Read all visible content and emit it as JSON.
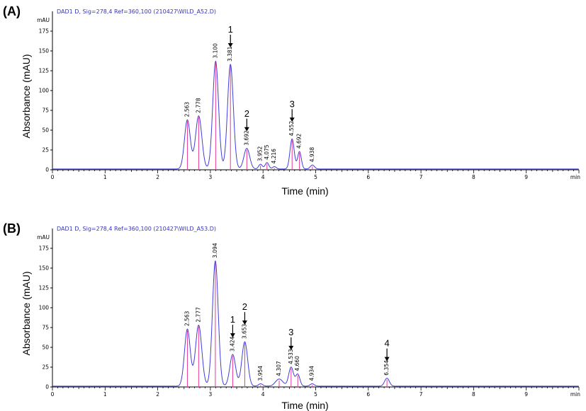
{
  "chart_data": [
    {
      "type": "line",
      "panel_label": "(A)",
      "signal": "DAD1 D, Sig=278,4 Ref=360,100 (210427\\WILD_A52.D)",
      "unit_label": "mAU",
      "time_unit": "min",
      "xlabel": "Time (min)",
      "ylabel": "Absorbance (mAU)",
      "xlim": [
        0,
        10
      ],
      "ylim": [
        0,
        200
      ],
      "x_ticks": [
        0,
        1,
        2,
        3,
        4,
        5,
        6,
        7,
        8,
        9
      ],
      "y_ticks": [
        0,
        25,
        50,
        75,
        100,
        125,
        150,
        175
      ],
      "peaks": [
        {
          "rt": "2.563",
          "x": 2.563,
          "height": 62,
          "width": 0.055
        },
        {
          "rt": "2.778",
          "x": 2.778,
          "height": 67,
          "width": 0.06
        },
        {
          "rt": "3.100",
          "x": 3.1,
          "height": 136,
          "width": 0.055
        },
        {
          "rt": "3.381",
          "x": 3.381,
          "height": 132,
          "width": 0.055
        },
        {
          "rt": "3.692",
          "x": 3.692,
          "height": 26,
          "width": 0.055
        },
        {
          "rt": "3.952",
          "x": 3.952,
          "height": 6,
          "width": 0.035
        },
        {
          "rt": "4.075",
          "x": 4.075,
          "height": 8,
          "width": 0.035
        },
        {
          "rt": "4.216",
          "x": 4.216,
          "height": 3,
          "width": 0.035
        },
        {
          "rt": "4.552",
          "x": 4.552,
          "height": 38,
          "width": 0.04
        },
        {
          "rt": "4.692",
          "x": 4.692,
          "height": 22,
          "width": 0.035
        },
        {
          "rt": "4.938",
          "x": 4.938,
          "height": 5,
          "width": 0.04
        }
      ],
      "arrows": [
        {
          "label": "1",
          "x": 3.381
        },
        {
          "label": "2",
          "x": 3.692
        },
        {
          "label": "3",
          "x": 4.552
        }
      ]
    },
    {
      "type": "line",
      "panel_label": "(B)",
      "signal": "DAD1 D, Sig=278,4 Ref=360,100 (210427\\WILD_A53.D)",
      "unit_label": "mAU",
      "time_unit": "min",
      "xlabel": "Time (min)",
      "ylabel": "Absorbance (mAU)",
      "xlim": [
        0,
        10
      ],
      "ylim": [
        0,
        200
      ],
      "x_ticks": [
        0,
        1,
        2,
        3,
        4,
        5,
        6,
        7,
        8,
        9
      ],
      "y_ticks": [
        0,
        25,
        50,
        75,
        100,
        125,
        150,
        175
      ],
      "peaks": [
        {
          "rt": "2.563",
          "x": 2.563,
          "height": 72,
          "width": 0.055
        },
        {
          "rt": "2.777",
          "x": 2.777,
          "height": 77,
          "width": 0.06
        },
        {
          "rt": "3.094",
          "x": 3.094,
          "height": 158,
          "width": 0.055
        },
        {
          "rt": "3.424",
          "x": 3.424,
          "height": 40,
          "width": 0.055
        },
        {
          "rt": "3.653",
          "x": 3.653,
          "height": 56,
          "width": 0.055
        },
        {
          "rt": "3.954",
          "x": 3.954,
          "height": 3,
          "width": 0.04
        },
        {
          "rt": "4.307",
          "x": 4.307,
          "height": 9,
          "width": 0.07
        },
        {
          "rt": "4.533",
          "x": 4.533,
          "height": 24,
          "width": 0.045
        },
        {
          "rt": "4.660",
          "x": 4.66,
          "height": 15,
          "width": 0.04
        },
        {
          "rt": "4.934",
          "x": 4.934,
          "height": 3,
          "width": 0.04
        },
        {
          "rt": "6.354",
          "x": 6.354,
          "height": 10,
          "width": 0.045
        }
      ],
      "arrows": [
        {
          "label": "1",
          "x": 3.424
        },
        {
          "label": "2",
          "x": 3.653
        },
        {
          "label": "3",
          "x": 4.533
        },
        {
          "label": "4",
          "x": 6.354
        }
      ]
    }
  ],
  "colors": {
    "trace": "#3e3edc",
    "peak_marker": "#e8389a",
    "axis": "#000000",
    "signal_text": "#3535b8"
  }
}
